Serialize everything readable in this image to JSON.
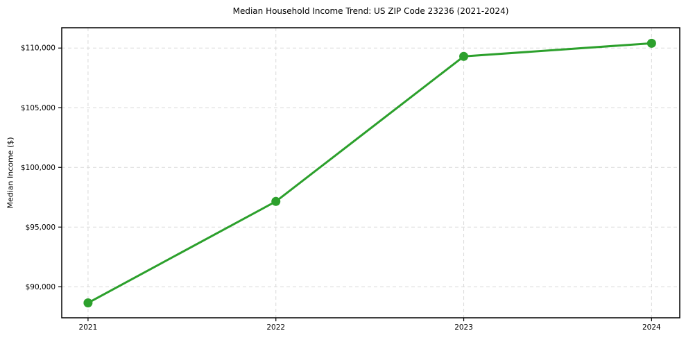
{
  "chart_data": {
    "type": "line",
    "title": "Median Household Income Trend: US ZIP Code 23236 (2021-2024)",
    "xlabel": "",
    "ylabel": "Median Income ($)",
    "categories": [
      2021,
      2022,
      2023,
      2024
    ],
    "x_tick_labels": [
      "2021",
      "2022",
      "2023",
      "2024"
    ],
    "series": [
      {
        "name": "Median Household Income",
        "values": [
          88650,
          97150,
          109300,
          110400
        ]
      }
    ],
    "y_ticks": [
      90000,
      95000,
      100000,
      105000,
      110000
    ],
    "y_tick_labels": [
      "$90,000",
      "$95,000",
      "$100,000",
      "$105,000",
      "$110,000"
    ],
    "ylim": [
      87400,
      111700
    ],
    "xlim": [
      2020.86,
      2024.15
    ],
    "grid": true,
    "legend_position": "none",
    "colors": {
      "line": "#2ca02c",
      "marker": "#2ca02c",
      "grid": "#d9d9d9",
      "axis": "#000000",
      "background": "#ffffff"
    },
    "line_width": 3,
    "marker_diameter": 13
  }
}
